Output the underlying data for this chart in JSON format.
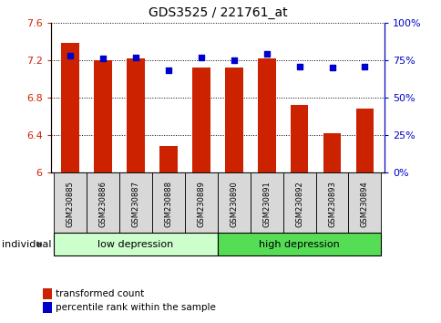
{
  "title": "GDS3525 / 221761_at",
  "samples": [
    "GSM230885",
    "GSM230886",
    "GSM230887",
    "GSM230888",
    "GSM230889",
    "GSM230890",
    "GSM230891",
    "GSM230892",
    "GSM230893",
    "GSM230894"
  ],
  "bar_values": [
    7.38,
    7.2,
    7.22,
    6.29,
    7.12,
    7.12,
    7.22,
    6.72,
    6.42,
    6.68
  ],
  "dot_values": [
    78,
    76,
    77,
    68,
    77,
    75,
    79,
    71,
    70,
    71
  ],
  "bar_color": "#cc2200",
  "dot_color": "#0000cc",
  "ylim_left": [
    6.0,
    7.6
  ],
  "ylim_right": [
    0,
    100
  ],
  "yticks_left": [
    6.0,
    6.4,
    6.8,
    7.2,
    7.6
  ],
  "ytick_labels_left": [
    "6",
    "6.4",
    "6.8",
    "7.2",
    "7.6"
  ],
  "yticks_right": [
    0,
    25,
    50,
    75,
    100
  ],
  "ytick_labels_right": [
    "0%",
    "25%",
    "50%",
    "75%",
    "100%"
  ],
  "group1_label": "low depression",
  "group2_label": "high depression",
  "group1_count": 5,
  "group2_count": 5,
  "group1_color": "#ccffcc",
  "group2_color": "#55dd55",
  "individual_label": "individual",
  "legend1_label": "transformed count",
  "legend2_label": "percentile rank within the sample",
  "bar_width": 0.55,
  "sample_box_color": "#d8d8d8",
  "bg_color": "#ffffff"
}
